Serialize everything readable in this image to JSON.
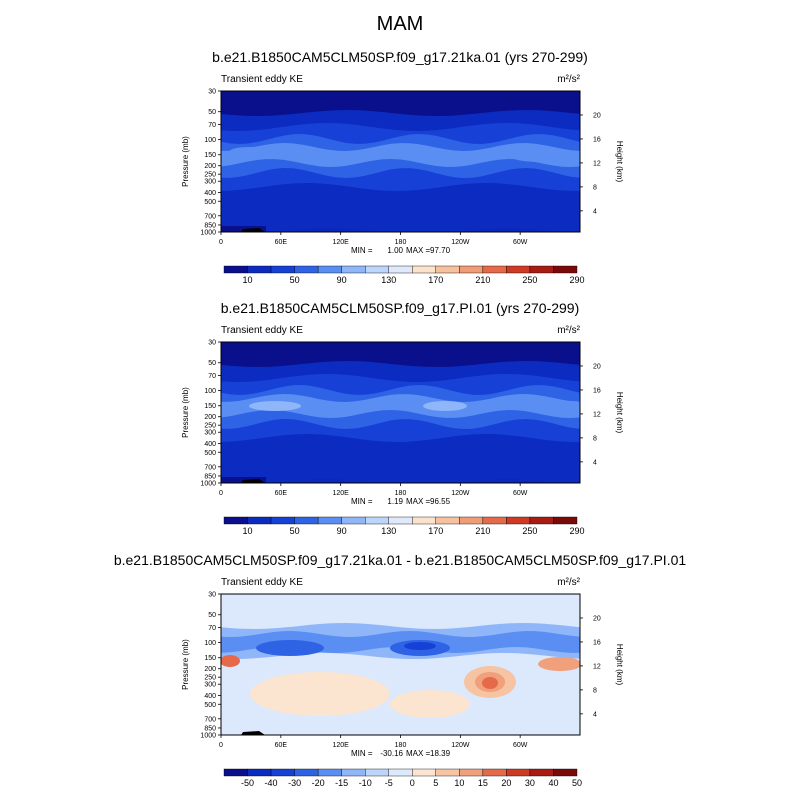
{
  "figure": {
    "title": "MAM"
  },
  "chart_data": [
    {
      "type": "contour",
      "title": "b.e21.B1850CAM5CLM50SP.f09_g17.21ka.01 (yrs 270-299)",
      "left_label": "Transient eddy KE",
      "units": "m²/s²",
      "ylabel": "Pressure (mb)",
      "right_label": "Height (km)",
      "y_ticks": [
        "30",
        "50",
        "70",
        "100",
        "150",
        "200",
        "250",
        "300",
        "400",
        "500",
        "700",
        "850",
        "1000"
      ],
      "right_ticks": [
        "20",
        "16",
        "12",
        "8",
        "4"
      ],
      "x_ticks": [
        "0",
        "60E",
        "120E",
        "180",
        "120W",
        "60W"
      ],
      "min_label": "MIN =",
      "min_value": "1.00",
      "max_label": "MAX =",
      "max_value": "97.70",
      "colorbar": [
        "10",
        "50",
        "90",
        "130",
        "170",
        "210",
        "250",
        "290"
      ],
      "field": "single"
    },
    {
      "type": "contour",
      "title": "b.e21.B1850CAM5CLM50SP.f09_g17.PI.01 (yrs 270-299)",
      "left_label": "Transient eddy KE",
      "units": "m²/s²",
      "ylabel": "Pressure (mb)",
      "right_label": "Height (km)",
      "y_ticks": [
        "30",
        "50",
        "70",
        "100",
        "150",
        "200",
        "250",
        "300",
        "400",
        "500",
        "700",
        "850",
        "1000"
      ],
      "right_ticks": [
        "20",
        "16",
        "12",
        "8",
        "4"
      ],
      "x_ticks": [
        "0",
        "60E",
        "120E",
        "180",
        "120W",
        "60W"
      ],
      "min_label": "MIN =",
      "min_value": "1.19",
      "max_label": "MAX =",
      "max_value": "96.55",
      "colorbar": [
        "10",
        "50",
        "90",
        "130",
        "170",
        "210",
        "250",
        "290"
      ],
      "field": "single"
    },
    {
      "type": "contour",
      "title": "b.e21.B1850CAM5CLM50SP.f09_g17.21ka.01 - b.e21.B1850CAM5CLM50SP.f09_g17.PI.01",
      "left_label": "Transient eddy KE",
      "units": "m²/s²",
      "ylabel": "Pressure (mb)",
      "right_label": "Height (km)",
      "y_ticks": [
        "30",
        "50",
        "70",
        "100",
        "150",
        "200",
        "250",
        "300",
        "400",
        "500",
        "700",
        "850",
        "1000"
      ],
      "right_ticks": [
        "20",
        "16",
        "12",
        "8",
        "4"
      ],
      "x_ticks": [
        "0",
        "60E",
        "120E",
        "180",
        "120W",
        "60W"
      ],
      "min_label": "MIN =",
      "min_value": "-30.16",
      "max_label": "MAX =",
      "max_value": "18.39",
      "colorbar": [
        "-50",
        "-40",
        "-30",
        "-20",
        "-15",
        "-10",
        "-5",
        "0",
        "5",
        "10",
        "15",
        "20",
        "30",
        "40",
        "50"
      ],
      "field": "diff"
    }
  ],
  "palettes": {
    "single": [
      "#0a0f8c",
      "#0c2bc0",
      "#1741d6",
      "#2f63e6",
      "#5b8ef2",
      "#8fb6f8",
      "#bcd5fb",
      "#dfe9fb",
      "#fbe2cd",
      "#f6c19f",
      "#f09c76",
      "#e56a4a",
      "#cf3a25",
      "#a81c14",
      "#7a0a0a"
    ],
    "diff": [
      "#0a0f8c",
      "#0c2bc0",
      "#1741d6",
      "#2f63e6",
      "#5b8ef2",
      "#8fb6f8",
      "#bcd5fb",
      "#dce8fb",
      "#fbe4d0",
      "#f6c4a2",
      "#f0a07a",
      "#e56a4a",
      "#cf3a25",
      "#a81c14",
      "#7a0a0a"
    ]
  }
}
